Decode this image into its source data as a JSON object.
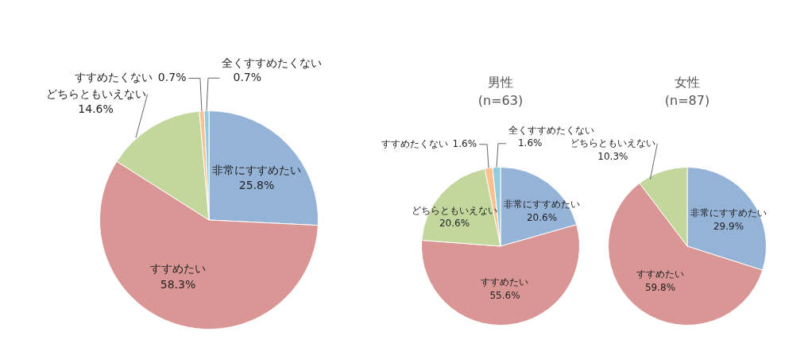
{
  "chart_data": [
    {
      "type": "pie",
      "categories": [
        "非常にすすめたい",
        "すすめたい",
        "どちらともいえない",
        "すすめたくない",
        "全くすすめたくない"
      ],
      "values": [
        25.8,
        58.3,
        14.6,
        0.7,
        0.7
      ],
      "value_labels": [
        "25.8%",
        "58.3%",
        "14.6%",
        "0.7%",
        "0.7%"
      ],
      "colors": [
        "#95b3d7",
        "#d99694",
        "#c3d69b",
        "#fac090",
        "#93cddd"
      ],
      "legend": false
    },
    {
      "type": "pie",
      "title": "男性",
      "subtitle": "(n=63)",
      "categories": [
        "非常にすすめたい",
        "すすめたい",
        "どちらともいえない",
        "すすめたくない",
        "全くすすめたくない"
      ],
      "values": [
        20.6,
        55.6,
        20.6,
        1.6,
        1.6
      ],
      "value_labels": [
        "20.6%",
        "55.6%",
        "20.6%",
        "1.6%",
        "1.6%"
      ],
      "colors": [
        "#95b3d7",
        "#d99694",
        "#c3d69b",
        "#fac090",
        "#93cddd"
      ],
      "legend": false
    },
    {
      "type": "pie",
      "title": "女性",
      "subtitle": "(n=87)",
      "categories": [
        "非常にすすめたい",
        "すすめたい",
        "どちらともいえない"
      ],
      "values": [
        29.9,
        59.8,
        10.3
      ],
      "value_labels": [
        "29.9%",
        "59.8%",
        "10.3%"
      ],
      "colors": [
        "#95b3d7",
        "#d99694",
        "#c3d69b"
      ],
      "legend": false
    }
  ]
}
